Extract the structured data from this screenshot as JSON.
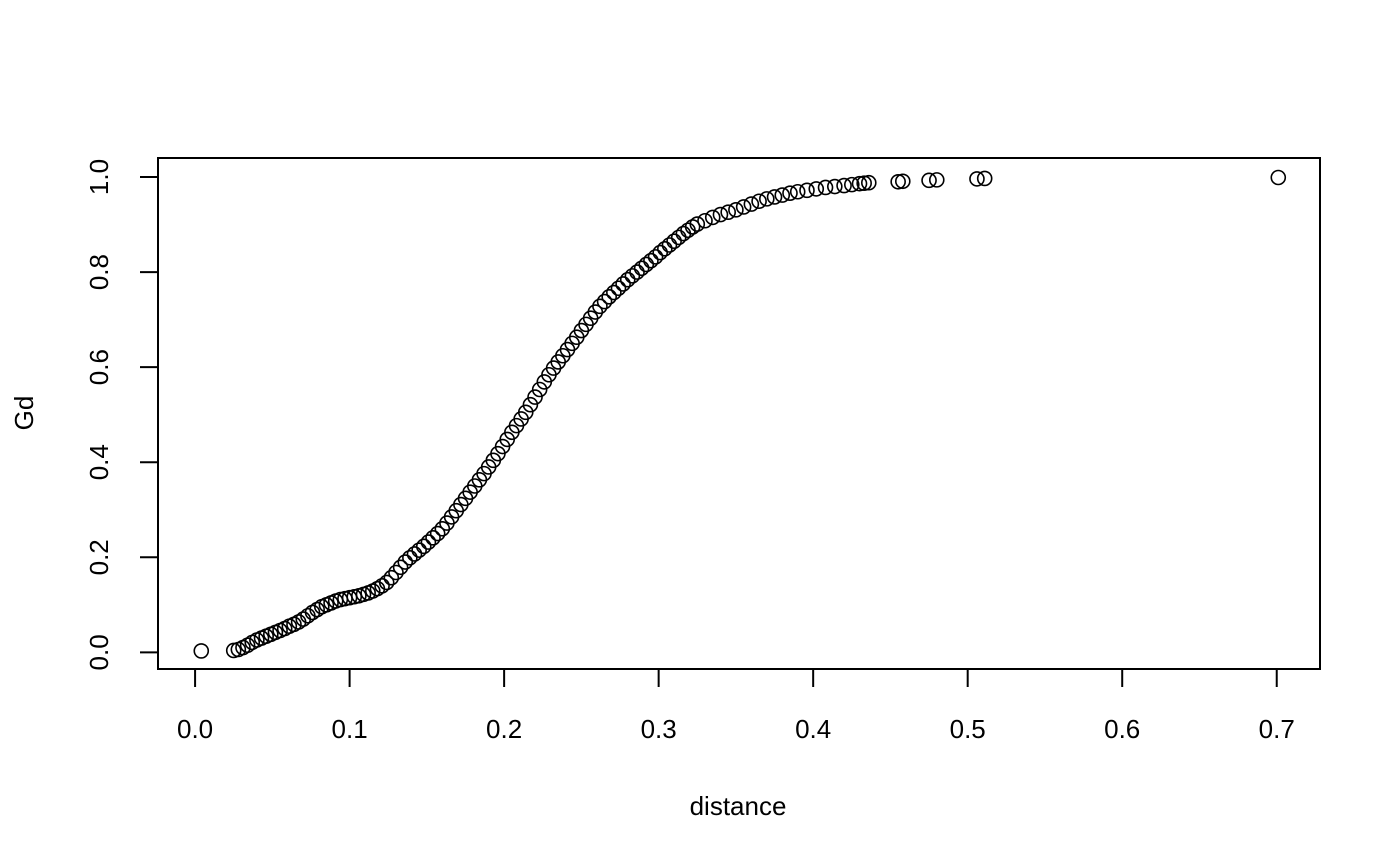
{
  "chart_data": {
    "type": "scatter",
    "title": "",
    "xlabel": "distance",
    "ylabel": "Gd",
    "xlim": [
      -0.024,
      0.728
    ],
    "ylim": [
      -0.035,
      1.04
    ],
    "grid": false,
    "legend": "none",
    "marker": "open-circle",
    "x_ticks": [
      0.0,
      0.1,
      0.2,
      0.3,
      0.4,
      0.5,
      0.6,
      0.7
    ],
    "x_tick_labels": [
      "0.0",
      "0.1",
      "0.2",
      "0.3",
      "0.4",
      "0.5",
      "0.6",
      "0.7"
    ],
    "y_ticks": [
      0.0,
      0.2,
      0.4,
      0.6,
      0.8,
      1.0
    ],
    "y_tick_labels": [
      "0.0",
      "0.2",
      "0.4",
      "0.6",
      "0.8",
      "1.0"
    ],
    "colors": {
      "points": "#000000",
      "axes": "#000000",
      "background": "#ffffff"
    },
    "x": [
      0.004,
      0.025,
      0.028,
      0.031,
      0.034,
      0.037,
      0.04,
      0.043,
      0.046,
      0.049,
      0.052,
      0.055,
      0.058,
      0.061,
      0.064,
      0.067,
      0.07,
      0.073,
      0.076,
      0.079,
      0.082,
      0.085,
      0.088,
      0.091,
      0.094,
      0.097,
      0.1,
      0.103,
      0.106,
      0.109,
      0.112,
      0.115,
      0.118,
      0.121,
      0.124,
      0.127,
      0.13,
      0.133,
      0.136,
      0.139,
      0.142,
      0.145,
      0.148,
      0.151,
      0.154,
      0.157,
      0.16,
      0.163,
      0.166,
      0.169,
      0.172,
      0.175,
      0.178,
      0.181,
      0.184,
      0.187,
      0.19,
      0.193,
      0.196,
      0.199,
      0.202,
      0.205,
      0.208,
      0.211,
      0.214,
      0.217,
      0.22,
      0.223,
      0.226,
      0.229,
      0.232,
      0.235,
      0.238,
      0.241,
      0.244,
      0.247,
      0.25,
      0.253,
      0.256,
      0.259,
      0.262,
      0.265,
      0.268,
      0.271,
      0.274,
      0.277,
      0.28,
      0.283,
      0.286,
      0.289,
      0.292,
      0.295,
      0.298,
      0.301,
      0.304,
      0.307,
      0.31,
      0.313,
      0.316,
      0.319,
      0.322,
      0.325,
      0.33,
      0.335,
      0.34,
      0.345,
      0.35,
      0.355,
      0.36,
      0.365,
      0.37,
      0.375,
      0.38,
      0.385,
      0.39,
      0.396,
      0.402,
      0.408,
      0.414,
      0.42,
      0.425,
      0.43,
      0.433,
      0.436,
      0.455,
      0.458,
      0.475,
      0.48,
      0.506,
      0.511,
      0.701
    ],
    "y": [
      0.003,
      0.004,
      0.006,
      0.01,
      0.015,
      0.021,
      0.026,
      0.03,
      0.034,
      0.038,
      0.042,
      0.046,
      0.05,
      0.055,
      0.059,
      0.064,
      0.07,
      0.077,
      0.084,
      0.09,
      0.096,
      0.1,
      0.104,
      0.108,
      0.111,
      0.113,
      0.115,
      0.117,
      0.119,
      0.122,
      0.125,
      0.129,
      0.134,
      0.14,
      0.147,
      0.157,
      0.168,
      0.179,
      0.19,
      0.199,
      0.207,
      0.215,
      0.223,
      0.232,
      0.241,
      0.25,
      0.26,
      0.272,
      0.285,
      0.298,
      0.311,
      0.324,
      0.337,
      0.35,
      0.363,
      0.376,
      0.39,
      0.404,
      0.418,
      0.433,
      0.448,
      0.463,
      0.477,
      0.491,
      0.505,
      0.521,
      0.537,
      0.553,
      0.569,
      0.584,
      0.598,
      0.611,
      0.624,
      0.637,
      0.65,
      0.663,
      0.677,
      0.69,
      0.703,
      0.716,
      0.728,
      0.738,
      0.748,
      0.757,
      0.766,
      0.775,
      0.784,
      0.792,
      0.8,
      0.808,
      0.816,
      0.824,
      0.832,
      0.841,
      0.849,
      0.857,
      0.865,
      0.873,
      0.881,
      0.888,
      0.895,
      0.901,
      0.908,
      0.915,
      0.921,
      0.926,
      0.931,
      0.937,
      0.943,
      0.949,
      0.954,
      0.958,
      0.962,
      0.966,
      0.969,
      0.972,
      0.975,
      0.978,
      0.98,
      0.982,
      0.984,
      0.986,
      0.987,
      0.988,
      0.99,
      0.991,
      0.993,
      0.994,
      0.996,
      0.997,
      0.999
    ]
  }
}
